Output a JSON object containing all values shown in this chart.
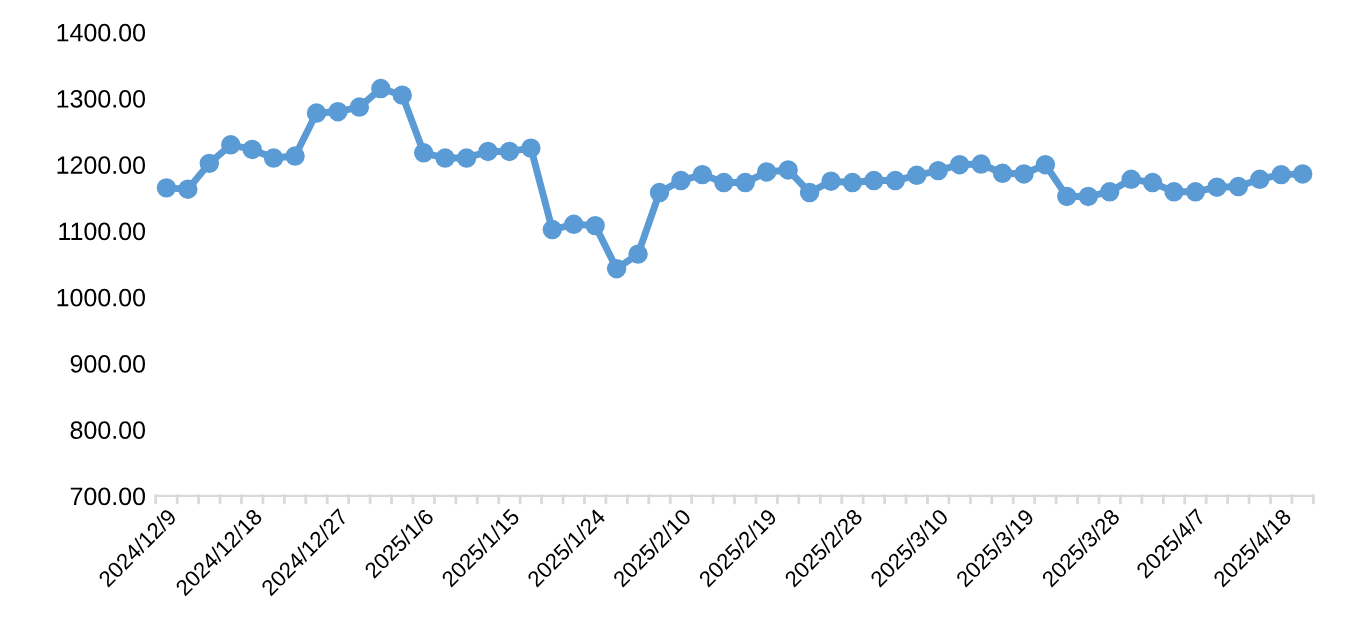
{
  "chart_data": {
    "type": "line",
    "categories": [
      "2024/12/9",
      null,
      null,
      null,
      "2024/12/18",
      null,
      null,
      null,
      "2024/12/27",
      null,
      null,
      null,
      "2025/1/6",
      null,
      null,
      null,
      "2025/1/15",
      null,
      null,
      null,
      "2025/1/24",
      null,
      null,
      null,
      "2025/2/10",
      null,
      null,
      null,
      "2025/2/19",
      null,
      null,
      null,
      "2025/2/28",
      null,
      null,
      null,
      "2025/3/10",
      null,
      null,
      null,
      "2025/3/19",
      null,
      null,
      null,
      "2025/3/28",
      null,
      null,
      null,
      "2025/4/7",
      null,
      null,
      null,
      "2025/4/18",
      null
    ],
    "series": [
      {
        "color": "#5b9bd5",
        "values": [
          1165,
          1163,
          1202,
          1230,
          1223,
          1210,
          1213,
          1278,
          1280,
          1287,
          1315,
          1305,
          1218,
          1210,
          1210,
          1220,
          1220,
          1225,
          1102,
          1110,
          1108,
          1043,
          1065,
          1158,
          1176,
          1185,
          1173,
          1173,
          1189,
          1192,
          1158,
          1175,
          1173,
          1176,
          1176,
          1184,
          1191,
          1200,
          1201,
          1187,
          1186,
          1200,
          1152,
          1152,
          1159,
          1178,
          1173,
          1159,
          1159,
          1166,
          1167,
          1178,
          1185,
          1186
        ]
      }
    ],
    "ylim": [
      700,
      1400
    ],
    "yticks": [
      {
        "value": 700,
        "label": "700.00"
      },
      {
        "value": 800,
        "label": "800.00"
      },
      {
        "value": 900,
        "label": "900.00"
      },
      {
        "value": 1000,
        "label": "1000.00"
      },
      {
        "value": 1100,
        "label": "1100.00"
      },
      {
        "value": 1200,
        "label": "1200.00"
      },
      {
        "value": 1300,
        "label": "1300.00"
      },
      {
        "value": 1400,
        "label": "1400.00"
      }
    ],
    "grid": false,
    "marker": "circle",
    "line_style": "solid"
  }
}
